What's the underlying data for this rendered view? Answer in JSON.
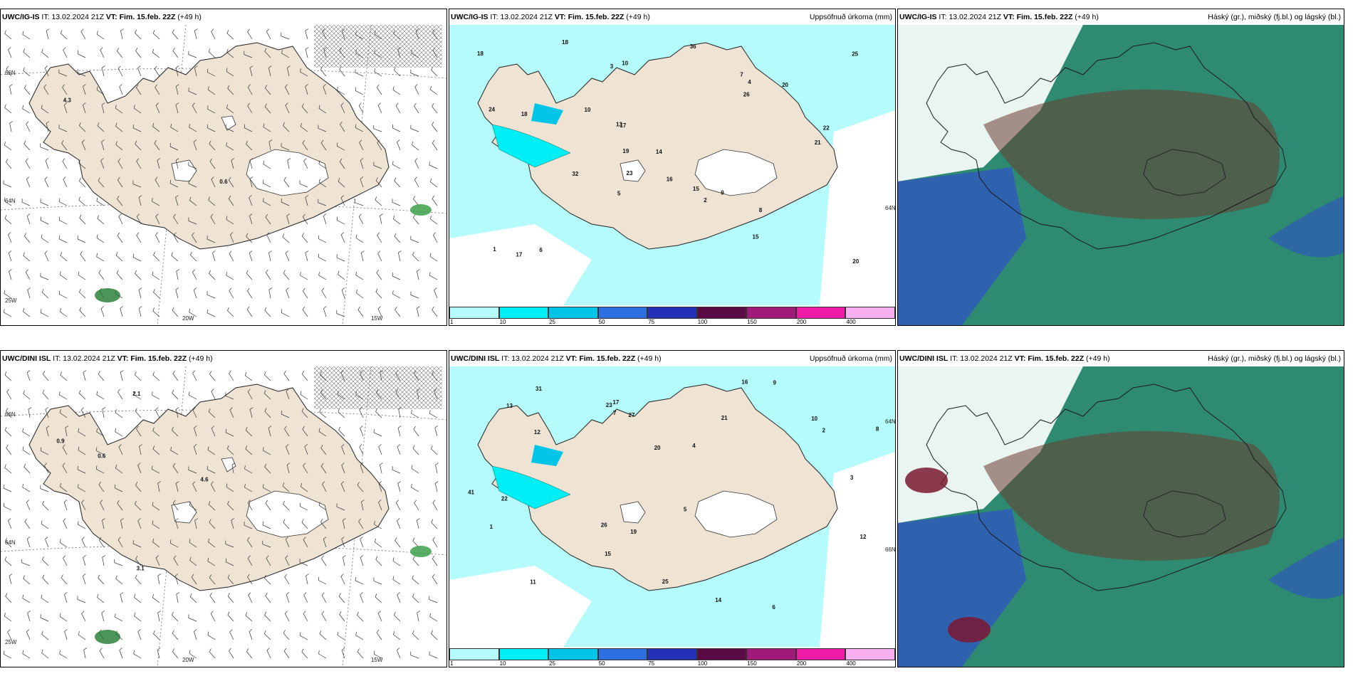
{
  "colors": {
    "land": "#efe3d4",
    "precip_light": "#b6fbfb",
    "precip_mid": "#00eef5",
    "precip_high": "#00c5e8",
    "cloud_high": "#6a3d2f",
    "cloud_mid": "#2e8a70",
    "cloud_low": "#2e5ab8"
  },
  "panels": [
    {
      "model": "UWC/IG-IS",
      "it_label": "IT:",
      "it_value": "13.02.2024 21Z",
      "vt_label": "VT:",
      "vt_value": "Fim. 15.feb. 22Z",
      "lead": "(+49 h)",
      "right_title": "",
      "grid_labels": [
        "66N",
        "64N",
        "25W",
        "20W",
        "15W"
      ],
      "values": [
        "0.6",
        "4.3"
      ]
    },
    {
      "model": "UWC/IG-IS",
      "it_label": "IT:",
      "it_value": "13.02.2024 21Z",
      "vt_label": "VT:",
      "vt_value": "Fim. 15.feb. 22Z",
      "lead": "(+49 h)",
      "right_title": "Uppsöfnuð úrkoma (mm)",
      "grid_labels": [
        "64N"
      ],
      "values": [
        "20",
        "14",
        "10",
        "18",
        "17",
        "15",
        "13",
        "23",
        "20",
        "16",
        "21",
        "22",
        "25",
        "24",
        "26",
        "18",
        "19",
        "15",
        "17",
        "18",
        "32",
        "36",
        "7",
        "8",
        "9",
        "10",
        "5",
        "4",
        "3",
        "2",
        "1",
        "6"
      ]
    },
    {
      "model": "UWC/IG-IS",
      "it_label": "IT:",
      "it_value": "13.02.2024 21Z",
      "vt_label": "VT:",
      "vt_value": "Fim. 15.feb. 22Z",
      "lead": "(+49 h)",
      "right_title": "Háský (gr.), miðský (fj.bl.) og lágský (bl.)",
      "grid_labels": [],
      "values": []
    },
    {
      "model": "UWC/DINI ISL",
      "it_label": "IT:",
      "it_value": "13.02.2024 21Z",
      "vt_label": "VT:",
      "vt_value": "Fim. 15.feb. 22Z",
      "lead": "(+49 h)",
      "right_title": "",
      "grid_labels": [
        "66N",
        "64N",
        "25W",
        "20W",
        "15W"
      ],
      "values": [
        "0.6",
        "0.9",
        "4.6",
        "2.1",
        "3.1"
      ]
    },
    {
      "model": "UWC/DINI ISL",
      "it_label": "IT:",
      "it_value": "13.02.2024 21Z",
      "vt_label": "VT:",
      "vt_value": "Fim. 15.feb. 22Z",
      "lead": "(+49 h)",
      "right_title": "Uppsöfnuð úrkoma (mm)",
      "grid_labels": [
        "66N",
        "64N"
      ],
      "values": [
        "13",
        "12",
        "10",
        "17",
        "22",
        "23",
        "14",
        "16",
        "27",
        "31",
        "41",
        "26",
        "19",
        "20",
        "25",
        "21",
        "15",
        "12",
        "11",
        "8",
        "9",
        "7",
        "6",
        "5",
        "4",
        "3",
        "2",
        "1"
      ]
    },
    {
      "model": "UWC/DINI ISL",
      "it_label": "IT:",
      "it_value": "13.02.2024 21Z",
      "vt_label": "VT:",
      "vt_value": "Fim. 15.feb. 22Z",
      "lead": "(+49 h)",
      "right_title": "Háský (gr.), miðský (fj.bl.) og lágský (bl.)",
      "grid_labels": [],
      "values": []
    }
  ],
  "legend": {
    "labels": [
      "1",
      "10",
      "25",
      "50",
      "75",
      "100",
      "150",
      "200",
      "400"
    ],
    "colors": [
      "#b6fbfb",
      "#00eef5",
      "#00c5e8",
      "#2e6fe0",
      "#2231b8",
      "#5a0a45",
      "#a01a7a",
      "#f01aa8",
      "#f8b0f0"
    ]
  }
}
